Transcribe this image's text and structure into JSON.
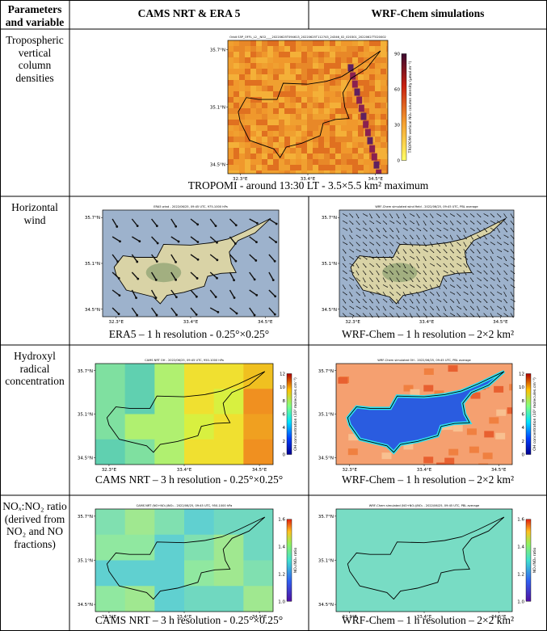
{
  "header": [
    "Parameters and variable",
    "CAMS NRT & ERA 5",
    "WRF-Chem simulations"
  ],
  "map_axes": {
    "lon": [
      "32.3°E",
      "33.4°E",
      "34.5°E"
    ],
    "lat": [
      "35.7°N",
      "35.1°N",
      "34.5°N"
    ]
  },
  "rows": [
    {
      "label": "Tropospheric vertical column densities",
      "maps": [
        {
          "title": "Orbit S5P_OFFL_L2__NO2____20220625T094613_20220625T112743_24346_02_020301_20220627T020002",
          "colorbar": {
            "label": "TROPOMI vertical NO₂ column density (µmol.m⁻²)",
            "ticks": [
              "0",
              "30",
              "60",
              "90"
            ]
          }
        }
      ],
      "captions": [
        "TROPOMI - around 13:30 LT - 3.5×5.5 km² maximum"
      ]
    },
    {
      "label": "Horizontal wind",
      "maps": [
        {
          "title": "ERA5 wind - 2022/06/25, 09:45 UTC, 975-1000 hPa"
        },
        {
          "title": "WRF-Chem simulated wind field - 2022/06/25, 09:45 UTC, PBL average"
        }
      ],
      "captions": [
        "ERA5 – 1 h resolution - 0.25°×0.25°",
        "WRF-Chem – 1 h resolution – 2×2 km²"
      ]
    },
    {
      "label": "Hydroxyl radical concentration",
      "maps": [
        {
          "title": "CAMS NRT OH - 2022/06/25, 09:45 UTC, 950-1000 hPa",
          "colorbar": {
            "label": "OH concentration (10⁵ molecules.cm⁻³)",
            "ticks": [
              "0",
              "2",
              "4",
              "6",
              "8",
              "10",
              "12"
            ]
          }
        },
        {
          "title": "WRF-Chem simulated OH - 2022/06/25, 09:45 UTC, PBL average",
          "colorbar": {
            "label": "OH concentration (10⁵ molecules.cm⁻³)",
            "ticks": [
              "0",
              "2",
              "4",
              "6",
              "8",
              "10",
              "12"
            ]
          }
        }
      ],
      "captions": [
        "CAMS NRT – 3 h resolution - 0.25°×0.25°",
        "WRF-Chem – 1 h resolution – 2×2 km²"
      ]
    },
    {
      "label": "NOₓ:NO₂ ratio (derived from NO₂ and NO fractions)",
      "maps": [
        {
          "title": "CAMS NRT (NO+NO₂)/NO₂ - 2022/06/25, 09:45 UTC, 950-1000 hPa",
          "colorbar": {
            "label": "NOₓ/NO₂ ratio",
            "ticks": [
              "1.0",
              "1.2",
              "1.4",
              "1.6"
            ]
          }
        },
        {
          "title": "WRF-Chem simulated (NO+NO₂)/NO₂ - 2022/06/25, 09:45 UTC, PBL average",
          "colorbar": {
            "label": "NOₓ/NO₂ ratio",
            "ticks": [
              "1.0",
              "1.2",
              "1.4",
              "1.6"
            ]
          }
        }
      ],
      "captions": [
        "CAMS NRT – 3 h resolution - 0.25°×0.25°",
        "WRF-Chem – 1 h resolution – 2×2 km²"
      ]
    }
  ]
}
